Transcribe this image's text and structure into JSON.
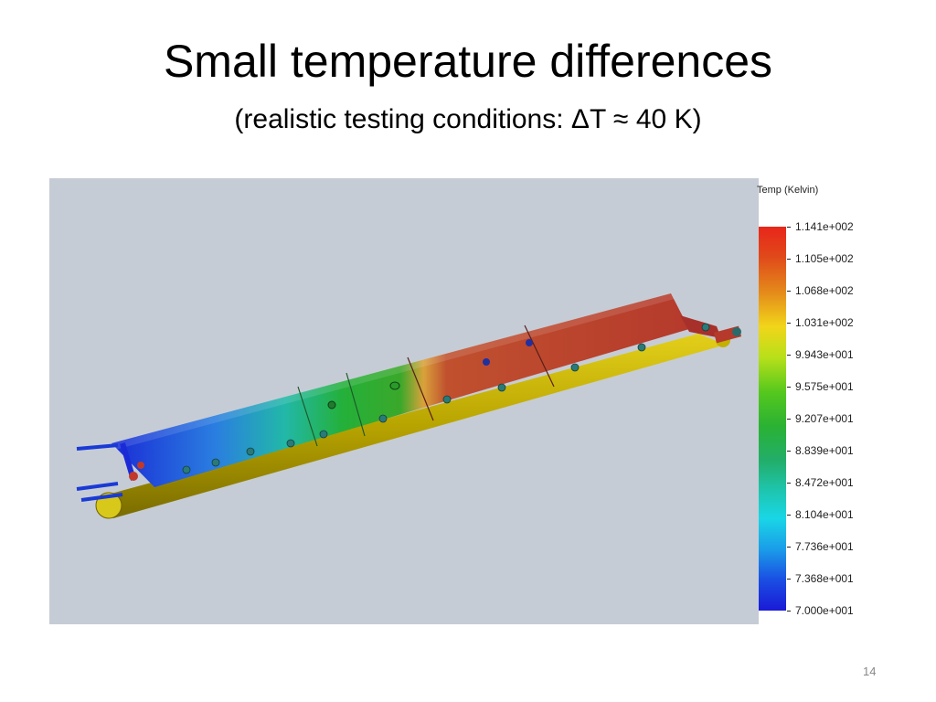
{
  "slide": {
    "title": "Small temperature differences",
    "subtitle": "(realistic testing conditions: ΔT ≈ 40 K)",
    "page_number": "14"
  },
  "legend": {
    "title": "Temp (Kelvin)",
    "ticks": [
      "1.141e+002",
      "1.105e+002",
      "1.068e+002",
      "1.031e+002",
      "9.943e+001",
      "9.575e+001",
      "9.207e+001",
      "8.839e+001",
      "8.472e+001",
      "8.104e+001",
      "7.736e+001",
      "7.368e+001",
      "7.000e+001"
    ]
  },
  "colors": {
    "hot": "#c0392b",
    "mid": "#2eb82e",
    "cold": "#1a1ad6",
    "base": "#c8b400",
    "background": "#c6ccd5"
  }
}
